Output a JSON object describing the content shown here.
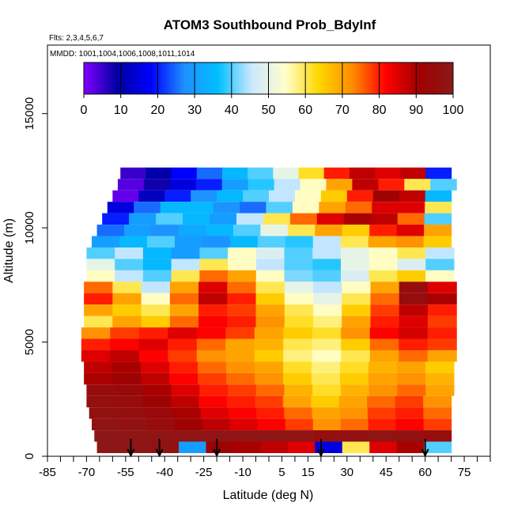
{
  "chart_data": {
    "type": "heatmap",
    "title": "ATOM3 Southbound Prob_BdyInf",
    "annotations": {
      "flights": "Flts: 2,3,4,5,6,7",
      "dates": "MMDD: 1001,1004,1006,1008,1011,1014"
    },
    "xlabel": "Latitude (deg N)",
    "ylabel": "Altitude (m)",
    "xlim": [
      -85,
      85
    ],
    "ylim": [
      0,
      18000
    ],
    "x_tick_labels": [
      "-85",
      "-70",
      "-55",
      "-40",
      "-25",
      "-10",
      "5",
      "15",
      "30",
      "45",
      "60",
      "75"
    ],
    "x_tick_values": [
      -85,
      -70,
      -55,
      -40,
      -25,
      -10,
      5,
      15,
      30,
      45,
      60,
      75
    ],
    "x_minor_step": 5,
    "y_tick_labels": [
      "0",
      "5000",
      "10000",
      "15000"
    ],
    "y_tick_values": [
      0,
      5000,
      10000,
      15000
    ],
    "colorbar": {
      "ticks": [
        "0",
        "10",
        "20",
        "30",
        "40",
        "50",
        "60",
        "70",
        "80",
        "90",
        "100"
      ],
      "range": [
        0,
        100
      ],
      "colors": [
        "#7F00FF",
        "#0000A0",
        "#0000FF",
        "#1E90FF",
        "#00BFFF",
        "#CCE8FF",
        "#FFFFCC",
        "#FFD700",
        "#FF8C00",
        "#FF0000",
        "#A00000",
        "#8B1A1A"
      ],
      "placement": "top-inside"
    },
    "layers": [
      {
        "alt": 12400,
        "xmin": -57,
        "xmax": 70,
        "values": [
          5,
          10,
          18,
          25,
          35,
          40,
          50,
          62,
          80,
          88,
          85,
          88,
          20
        ]
      },
      {
        "alt": 11900,
        "xmin": -58,
        "xmax": 72,
        "values": [
          3,
          8,
          15,
          20,
          30,
          38,
          45,
          55,
          70,
          88,
          80,
          60,
          40
        ]
      },
      {
        "alt": 11400,
        "xmin": -60,
        "xmax": 70,
        "values": [
          2,
          12,
          20,
          28,
          35,
          40,
          45,
          55,
          65,
          80,
          92,
          88,
          35
        ]
      },
      {
        "alt": 10900,
        "xmin": -62,
        "xmax": 70,
        "values": [
          15,
          25,
          35,
          35,
          28,
          25,
          40,
          55,
          70,
          75,
          85,
          85,
          60
        ]
      },
      {
        "alt": 10400,
        "xmin": -64,
        "xmax": 70,
        "values": [
          20,
          30,
          40,
          35,
          30,
          45,
          60,
          75,
          85,
          90,
          88,
          75,
          40
        ]
      },
      {
        "alt": 9900,
        "xmin": -66,
        "xmax": 70,
        "values": [
          25,
          30,
          28,
          32,
          35,
          40,
          50,
          60,
          70,
          65,
          80,
          85,
          70
        ]
      },
      {
        "alt": 9400,
        "xmin": -68,
        "xmax": 70,
        "values": [
          30,
          35,
          40,
          30,
          28,
          35,
          40,
          38,
          45,
          60,
          70,
          72,
          65
        ]
      },
      {
        "alt": 8900,
        "xmin": -70,
        "xmax": 71,
        "values": [
          40,
          45,
          35,
          30,
          40,
          55,
          48,
          40,
          45,
          50,
          55,
          60,
          45
        ]
      },
      {
        "alt": 8400,
        "xmin": -70,
        "xmax": 71,
        "values": [
          50,
          40,
          35,
          45,
          60,
          55,
          45,
          40,
          38,
          50,
          55,
          48,
          40
        ]
      },
      {
        "alt": 7900,
        "xmin": -70,
        "xmax": 71,
        "values": [
          55,
          45,
          40,
          60,
          75,
          70,
          55,
          42,
          40,
          48,
          60,
          65,
          55
        ]
      },
      {
        "alt": 7400,
        "xmin": -71,
        "xmax": 72,
        "values": [
          75,
          60,
          45,
          70,
          85,
          75,
          60,
          50,
          45,
          55,
          70,
          95,
          85
        ]
      },
      {
        "alt": 6900,
        "xmin": -71,
        "xmax": 72,
        "values": [
          80,
          70,
          55,
          75,
          88,
          80,
          65,
          55,
          50,
          60,
          75,
          95,
          90
        ]
      },
      {
        "alt": 6400,
        "xmin": -71,
        "xmax": 72,
        "values": [
          70,
          65,
          60,
          70,
          80,
          78,
          70,
          60,
          55,
          65,
          78,
          88,
          80
        ]
      },
      {
        "alt": 5900,
        "xmin": -71,
        "xmax": 72,
        "values": [
          60,
          70,
          65,
          75,
          82,
          80,
          72,
          62,
          58,
          70,
          80,
          85,
          78
        ]
      },
      {
        "alt": 5400,
        "xmin": -72,
        "xmax": 72,
        "values": [
          72,
          78,
          80,
          85,
          82,
          78,
          70,
          65,
          62,
          72,
          82,
          86,
          80
        ]
      },
      {
        "alt": 4900,
        "xmin": -72,
        "xmax": 72,
        "values": [
          80,
          82,
          85,
          80,
          75,
          70,
          68,
          60,
          58,
          65,
          75,
          80,
          78
        ]
      },
      {
        "alt": 4400,
        "xmin": -72,
        "xmax": 72,
        "values": [
          85,
          88,
          82,
          78,
          72,
          70,
          65,
          58,
          55,
          60,
          70,
          75,
          70
        ]
      },
      {
        "alt": 3900,
        "xmin": -71,
        "xmax": 71,
        "values": [
          88,
          90,
          85,
          80,
          75,
          72,
          70,
          62,
          58,
          62,
          68,
          70,
          65
        ]
      },
      {
        "alt": 3400,
        "xmin": -71,
        "xmax": 71,
        "values": [
          90,
          92,
          88,
          82,
          78,
          75,
          72,
          65,
          60,
          65,
          70,
          72,
          68
        ]
      },
      {
        "alt": 2900,
        "xmin": -70,
        "xmax": 71,
        "values": [
          95,
          94,
          90,
          85,
          80,
          78,
          75,
          68,
          62,
          68,
          72,
          75,
          70
        ]
      },
      {
        "alt": 2400,
        "xmin": -70,
        "xmax": 70,
        "values": [
          96,
          95,
          92,
          88,
          82,
          80,
          78,
          70,
          65,
          70,
          75,
          78,
          72
        ]
      },
      {
        "alt": 1900,
        "xmin": -69,
        "xmax": 70,
        "values": [
          97,
          96,
          94,
          90,
          85,
          82,
          80,
          75,
          70,
          72,
          78,
          80,
          75
        ]
      },
      {
        "alt": 1400,
        "xmin": -68,
        "xmax": 70,
        "values": [
          98,
          97,
          95,
          92,
          88,
          85,
          82,
          78,
          72,
          75,
          80,
          82,
          78
        ]
      },
      {
        "alt": 900,
        "xmin": -67,
        "xmax": 70,
        "values": [
          99,
          98,
          98,
          98,
          98,
          98,
          98,
          98,
          96,
          97,
          98,
          97,
          95
        ]
      },
      {
        "alt": 400,
        "xmin": -66,
        "xmax": 70,
        "values": [
          99,
          99,
          97,
          30,
          92,
          90,
          88,
          85,
          15,
          60,
          85,
          90,
          40
        ]
      }
    ],
    "layer_thickness_m": 480,
    "profile_arrows_lat": [
      -53,
      -42,
      -20,
      20,
      60
    ]
  }
}
